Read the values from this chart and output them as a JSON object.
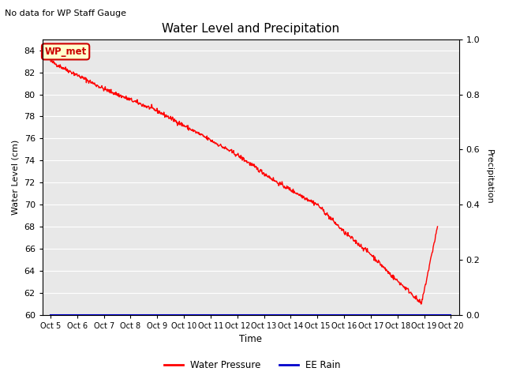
{
  "title": "Water Level and Precipitation",
  "subtitle": "No data for WP Staff Gauge",
  "xlabel": "Time",
  "ylabel_left": "Water Level (cm)",
  "ylabel_right": "Precipitation",
  "legend_label1": "Water Pressure",
  "legend_label2": "EE Rain",
  "annotation": "WP_met",
  "x_tick_labels": [
    "Oct 5",
    "Oct 6",
    "Oct 7",
    "Oct 8",
    "Oct 9",
    "Oct 10",
    "Oct 11",
    "Oct 12",
    "Oct 13",
    "Oct 14",
    "Oct 15",
    "Oct 16",
    "Oct 17",
    "Oct 18",
    "Oct 19",
    "Oct 20"
  ],
  "ylim_left": [
    60,
    85
  ],
  "ylim_right": [
    0.0,
    1.0
  ],
  "yticks_left": [
    60,
    62,
    64,
    66,
    68,
    70,
    72,
    74,
    76,
    78,
    80,
    82,
    84
  ],
  "yticks_right": [
    0.0,
    0.2,
    0.4,
    0.6,
    0.8,
    1.0
  ],
  "line_color": "#ff0000",
  "rain_color": "#0000cc",
  "background_color": "#e8e8e8",
  "annotation_bg": "#ffffcc",
  "annotation_text_color": "#cc0000",
  "annotation_border_color": "#cc0000",
  "fig_facecolor": "#ffffff",
  "grid_color": "#ffffff"
}
